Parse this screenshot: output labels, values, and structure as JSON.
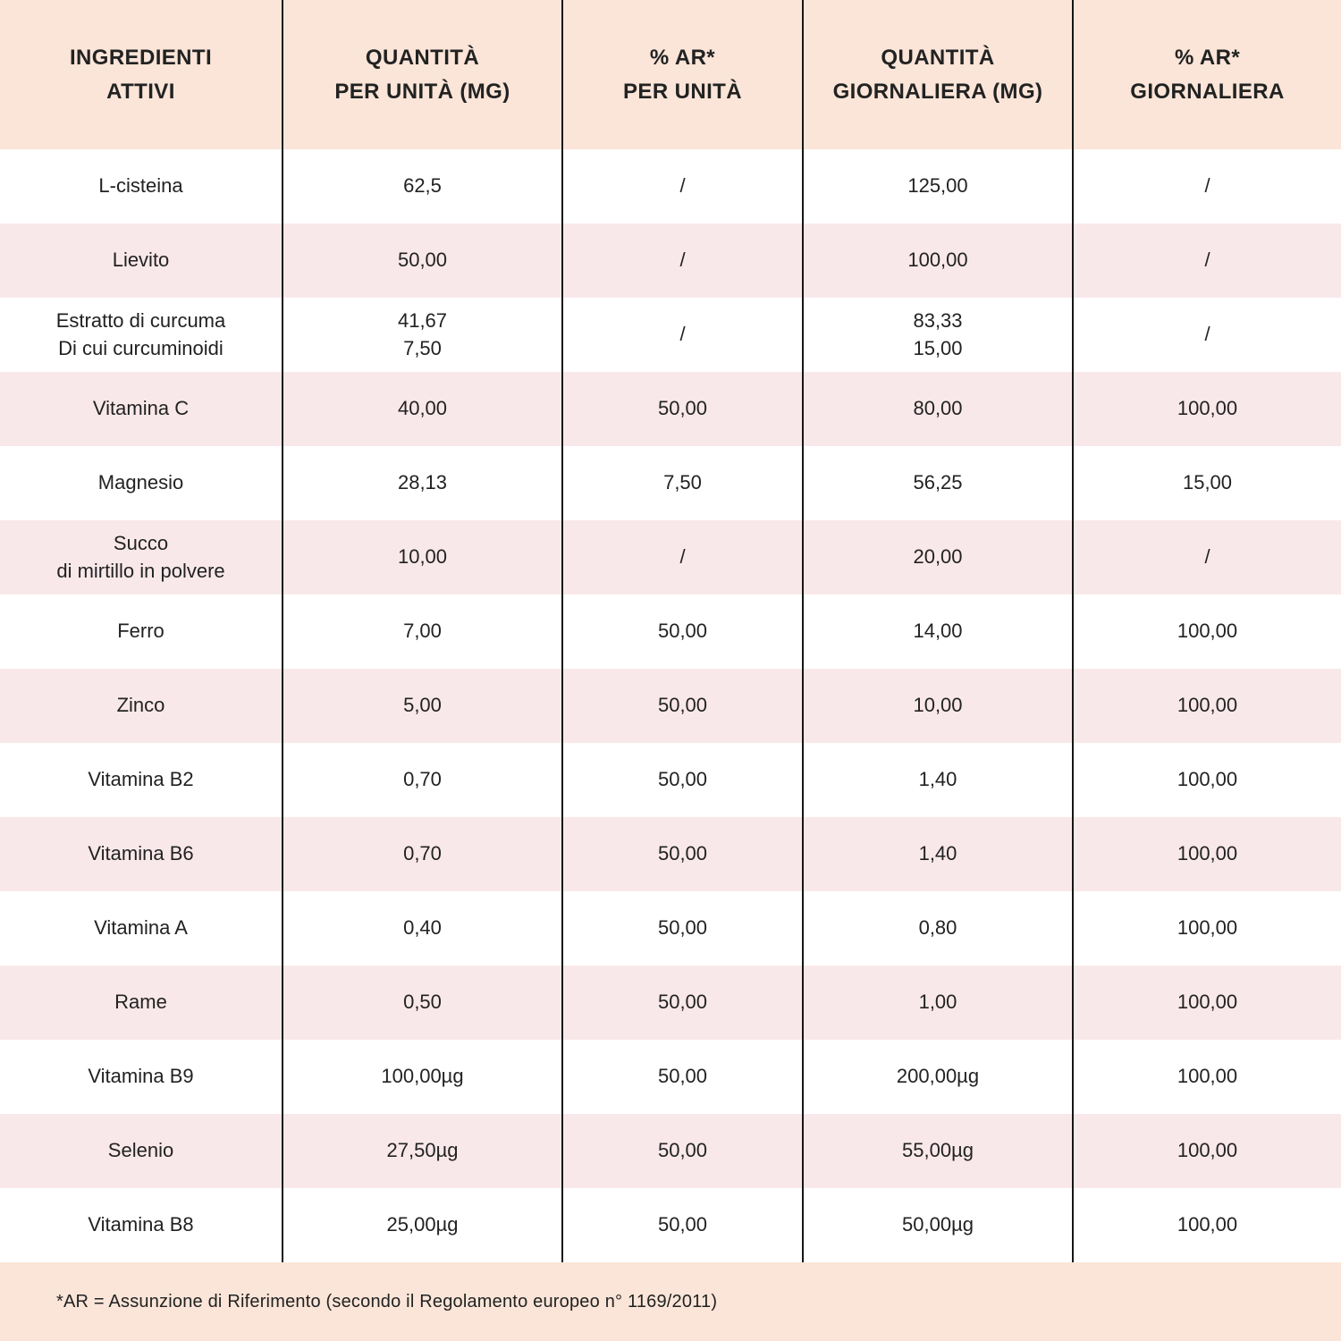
{
  "table": {
    "headers": [
      "INGREDIENTI\nATTIVI",
      "QUANTITÀ\nPER UNITÀ (MG)",
      "% AR*\nPER UNITÀ",
      "QUANTITÀ\nGIORNALIERA (MG)",
      "% AR*\nGIORNALIERA"
    ],
    "rows": [
      [
        "L-cisteina",
        "62,5",
        "/",
        "125,00",
        "/"
      ],
      [
        "Lievito",
        "50,00",
        "/",
        "100,00",
        "/"
      ],
      [
        "Estratto di curcuma\nDi cui curcuminoidi",
        "41,67\n7,50",
        "/",
        "83,33\n15,00",
        "/"
      ],
      [
        "Vitamina C",
        "40,00",
        "50,00",
        "80,00",
        "100,00"
      ],
      [
        "Magnesio",
        "28,13",
        "7,50",
        "56,25",
        "15,00"
      ],
      [
        "Succo\ndi mirtillo in polvere",
        "10,00",
        "/",
        "20,00",
        "/"
      ],
      [
        "Ferro",
        "7,00",
        "50,00",
        "14,00",
        "100,00"
      ],
      [
        "Zinco",
        "5,00",
        "50,00",
        "10,00",
        "100,00"
      ],
      [
        "Vitamina B2",
        "0,70",
        "50,00",
        "1,40",
        "100,00"
      ],
      [
        "Vitamina B6",
        "0,70",
        "50,00",
        "1,40",
        "100,00"
      ],
      [
        "Vitamina A",
        "0,40",
        "50,00",
        "0,80",
        "100,00"
      ],
      [
        "Rame",
        "0,50",
        "50,00",
        "1,00",
        "100,00"
      ],
      [
        "Vitamina B9",
        "100,00µg",
        "50,00",
        "200,00µg",
        "100,00"
      ],
      [
        "Selenio",
        "27,50µg",
        "50,00",
        "55,00µg",
        "100,00"
      ],
      [
        "Vitamina B8",
        "25,00µg",
        "50,00",
        "50,00µg",
        "100,00"
      ]
    ]
  },
  "footnote": "*AR = Assunzione di Riferimento (secondo il Regolamento europeo n° 1169/2011)",
  "colors": {
    "header_background": "#fae5d8",
    "row_alt_background": "#f9e8ea",
    "row_background": "#ffffff",
    "divider_line": "#161616",
    "text": "#222222"
  }
}
